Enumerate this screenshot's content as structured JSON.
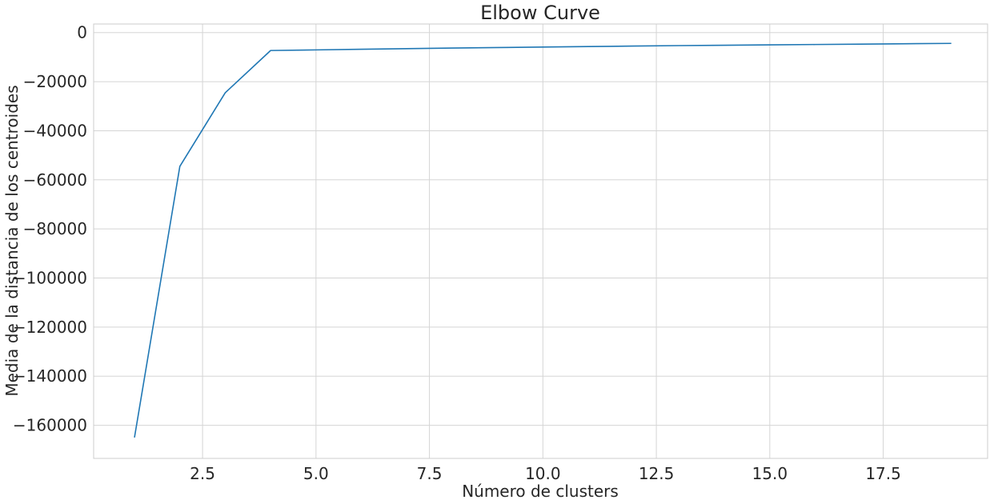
{
  "chart_data": {
    "type": "line",
    "title": "Elbow Curve",
    "xlabel": "Número de clusters",
    "ylabel": "Media de la distancia de los centroides",
    "xlim": [
      0.1,
      19.8
    ],
    "ylim": [
      -173500,
      3500
    ],
    "xticks": [
      2.5,
      5.0,
      7.5,
      10.0,
      12.5,
      15.0,
      17.5
    ],
    "xtick_labels": [
      "2.5",
      "5.0",
      "7.5",
      "10.0",
      "12.5",
      "15.0",
      "17.5"
    ],
    "yticks": [
      0,
      -20000,
      -40000,
      -60000,
      -80000,
      -100000,
      -120000,
      -140000,
      -160000
    ],
    "ytick_labels": [
      "0",
      "−20000",
      "−40000",
      "−60000",
      "−80000",
      "−100000",
      "−120000",
      "−140000",
      "−160000"
    ],
    "grid": true,
    "series": [
      {
        "x": [
          1,
          2,
          3,
          4,
          5,
          6,
          7,
          8,
          9,
          10,
          11,
          12,
          13,
          14,
          15,
          16,
          17,
          18,
          19
        ],
        "values": [
          -165000,
          -54500,
          -24500,
          -7300,
          -7050,
          -6800,
          -6550,
          -6300,
          -6100,
          -5900,
          -5700,
          -5500,
          -5300,
          -5150,
          -5000,
          -4850,
          -4700,
          -4550,
          -4400
        ],
        "color": "#1f77b4"
      }
    ]
  }
}
